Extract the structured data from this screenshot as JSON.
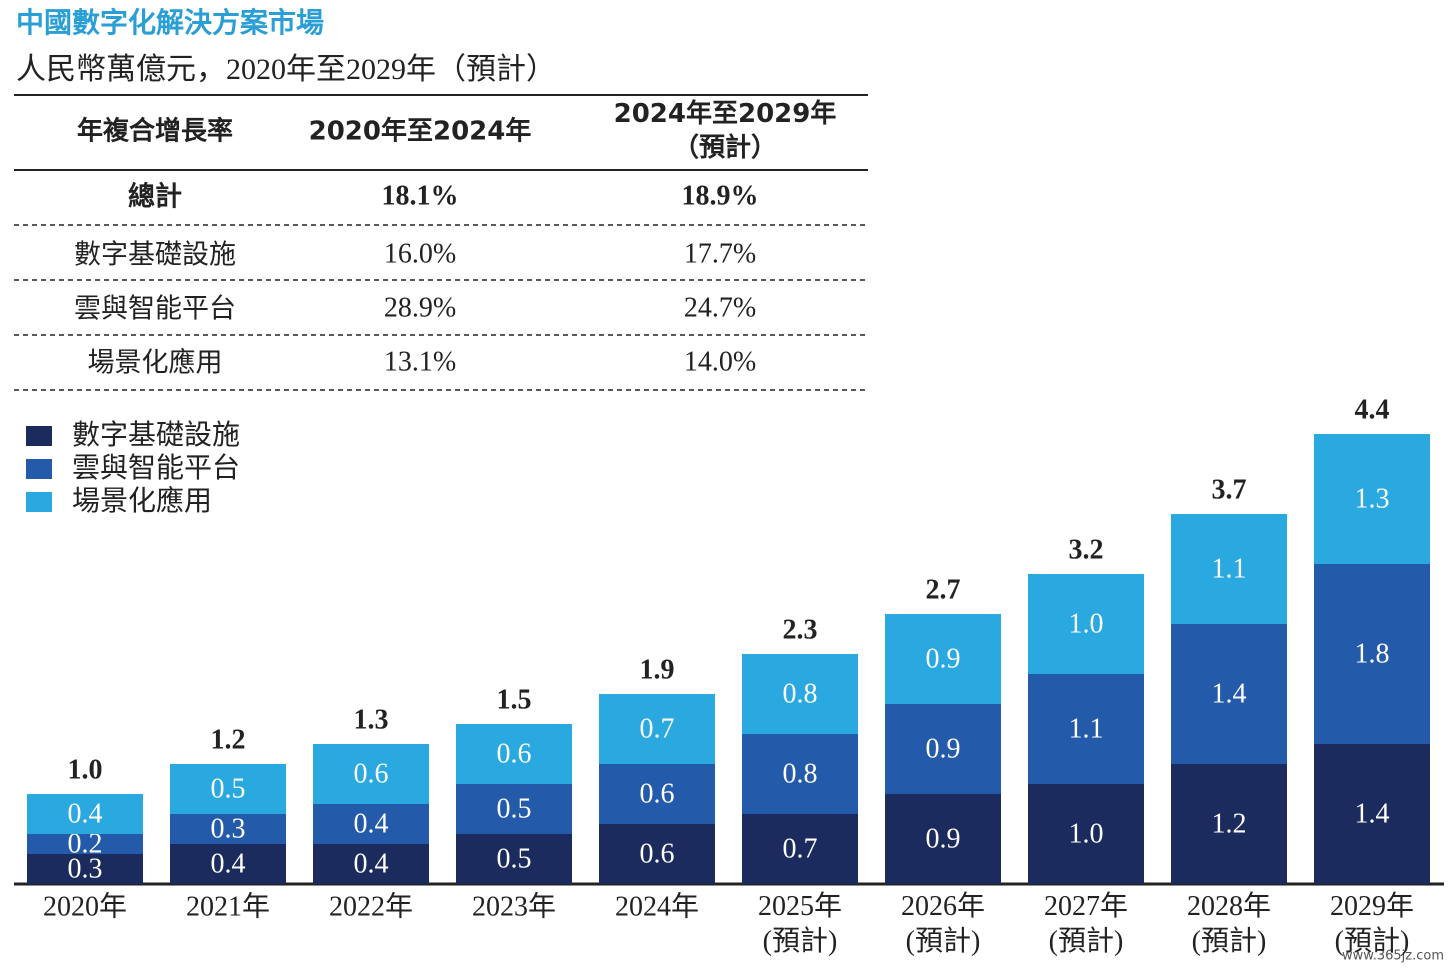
{
  "header": {
    "title": "中國數字化解決方案市場",
    "subtitle": "人民幣萬億元，2020年至2029年（預計）"
  },
  "table": {
    "columns": [
      "年複合增長率",
      "2020年至2024年",
      "2024年至2029年\n（預計）"
    ],
    "rows": [
      [
        "總計",
        "18.1%",
        "18.9%"
      ],
      [
        "數字基礎設施",
        "16.0%",
        "17.7%"
      ],
      [
        "雲與智能平台",
        "28.9%",
        "24.7%"
      ],
      [
        "場景化應用",
        "13.1%",
        "14.0%"
      ]
    ]
  },
  "chart_data": {
    "type": "stacked-bar",
    "categories": [
      "2020年",
      "2021年",
      "2022年",
      "2023年",
      "2024年",
      "2025年\n(預計)",
      "2026年\n(預計)",
      "2027年\n(預計)",
      "2028年\n(預計)",
      "2029年\n(預計)"
    ],
    "series": [
      {
        "name": "數字基礎設施",
        "color": "#1c2b5e",
        "values": [
          0.3,
          0.4,
          0.4,
          0.5,
          0.6,
          0.7,
          0.9,
          1.0,
          1.2,
          1.4
        ]
      },
      {
        "name": "雲與智能平台",
        "color": "#235aa9",
        "values": [
          0.2,
          0.3,
          0.4,
          0.5,
          0.6,
          0.8,
          0.9,
          1.1,
          1.4,
          1.8
        ]
      },
      {
        "name": "場景化應用",
        "color": "#2aa8e0",
        "values": [
          0.4,
          0.5,
          0.6,
          0.6,
          0.7,
          0.8,
          0.9,
          1.0,
          1.1,
          1.3
        ]
      }
    ],
    "totals": [
      1.0,
      1.2,
      1.3,
      1.5,
      1.9,
      2.3,
      2.7,
      3.2,
      3.7,
      4.4
    ],
    "total_labels": [
      "1.0",
      "1.2",
      "1.3",
      "1.5",
      "1.9",
      "2.3",
      "2.7",
      "3.2",
      "3.7",
      "4.4"
    ],
    "value_labels": [
      [
        "0.3",
        "0.4",
        "0.4",
        "0.5",
        "0.6",
        "0.7",
        "0.9",
        "1.0",
        "1.2",
        "1.4"
      ],
      [
        "0.2",
        "0.3",
        "0.4",
        "0.5",
        "0.6",
        "0.8",
        "0.9",
        "1.1",
        "1.4",
        "1.8"
      ],
      [
        "0.4",
        "0.5",
        "0.6",
        "0.6",
        "0.7",
        "0.8",
        "0.9",
        "1.0",
        "1.1",
        "1.3"
      ]
    ]
  },
  "watermark": "www.365jz.com"
}
